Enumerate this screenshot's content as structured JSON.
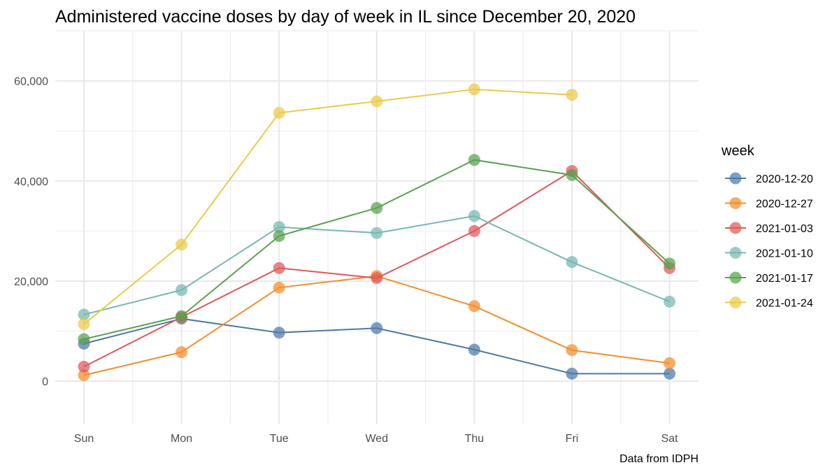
{
  "chart_data": {
    "type": "line",
    "title": "Administered vaccine doses by day of week in IL since December 20, 2020",
    "caption": "Data from IDPH",
    "xlabel": "",
    "ylabel": "",
    "categories": [
      "Sun",
      "Mon",
      "Tue",
      "Wed",
      "Thu",
      "Fri",
      "Sat"
    ],
    "y_ticks": [
      0,
      20000,
      40000,
      60000
    ],
    "y_tick_labels": [
      "0",
      "20,000",
      "40,000",
      "60,000"
    ],
    "ylim": [
      -8500,
      70000
    ],
    "grid": true,
    "legend": {
      "title": "week",
      "position": "right"
    },
    "series": [
      {
        "name": "2020-12-20",
        "color": "#4e79a7",
        "values": [
          7500,
          12500,
          9700,
          10600,
          6300,
          1500,
          1500
        ]
      },
      {
        "name": "2020-12-27",
        "color": "#f28e2b",
        "values": [
          1200,
          5800,
          18700,
          21000,
          15000,
          6200,
          3600
        ]
      },
      {
        "name": "2021-01-03",
        "color": "#e15759",
        "values": [
          2900,
          12800,
          22600,
          20600,
          30000,
          42000,
          22600
        ]
      },
      {
        "name": "2021-01-10",
        "color": "#76b7b2",
        "values": [
          13300,
          18200,
          30800,
          29600,
          33000,
          23800,
          15900
        ]
      },
      {
        "name": "2021-01-17",
        "color": "#59a14f",
        "values": [
          8400,
          13000,
          29000,
          34600,
          44200,
          41200,
          23500
        ]
      },
      {
        "name": "2021-01-24",
        "color": "#edc948",
        "values": [
          11400,
          27300,
          53600,
          55900,
          58300,
          57200,
          null
        ]
      }
    ]
  }
}
